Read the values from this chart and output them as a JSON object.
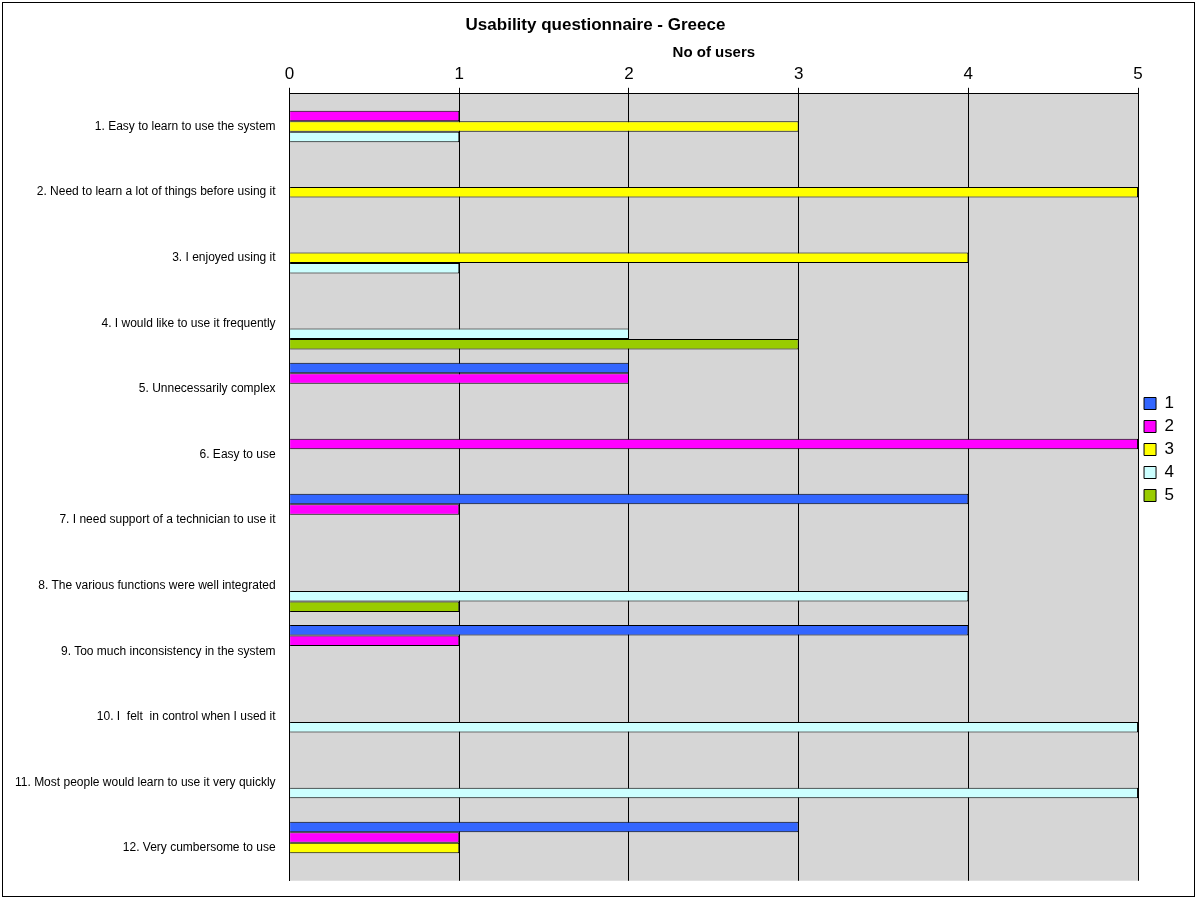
{
  "chart_data": {
    "type": "bar",
    "orientation": "horizontal",
    "title": "Usability questionnaire - Greece",
    "xlabel": "No of users",
    "categories": [
      "1. Easy to learn to use the system",
      "2. Need to learn a lot of things before using it",
      "3. I enjoyed using it",
      "4. I would like to use it frequently",
      "5. Unnecessarily complex",
      "6. Easy to use",
      "7. I need support of a technician to use it",
      "8. The various functions were well integrated",
      "9. Too much inconsistency in the system",
      "10. I  felt  in control when I used it",
      "11. Most people would learn to use it very quickly",
      "12. Very cumbersome to use"
    ],
    "series": [
      {
        "name": "1",
        "color": "#3366ff",
        "values": [
          null,
          null,
          null,
          null,
          2,
          null,
          4,
          null,
          4,
          null,
          null,
          3
        ]
      },
      {
        "name": "2",
        "color": "#ff00ff",
        "values": [
          1,
          null,
          null,
          null,
          2,
          5,
          1,
          null,
          1,
          null,
          null,
          1
        ]
      },
      {
        "name": "3",
        "color": "#ffff00",
        "values": [
          3,
          5,
          4,
          null,
          null,
          null,
          null,
          null,
          null,
          null,
          null,
          1
        ]
      },
      {
        "name": "4",
        "color": "#ccffff",
        "values": [
          1,
          null,
          1,
          2,
          null,
          null,
          null,
          4,
          null,
          5,
          5,
          null
        ]
      },
      {
        "name": "5",
        "color": "#99cc00",
        "values": [
          null,
          null,
          null,
          3,
          null,
          null,
          null,
          1,
          null,
          null,
          null,
          null
        ]
      }
    ],
    "xlim": [
      0,
      5
    ],
    "xticks": [
      0,
      1,
      2,
      3,
      4,
      5
    ],
    "grid": "x",
    "legend": "right"
  }
}
